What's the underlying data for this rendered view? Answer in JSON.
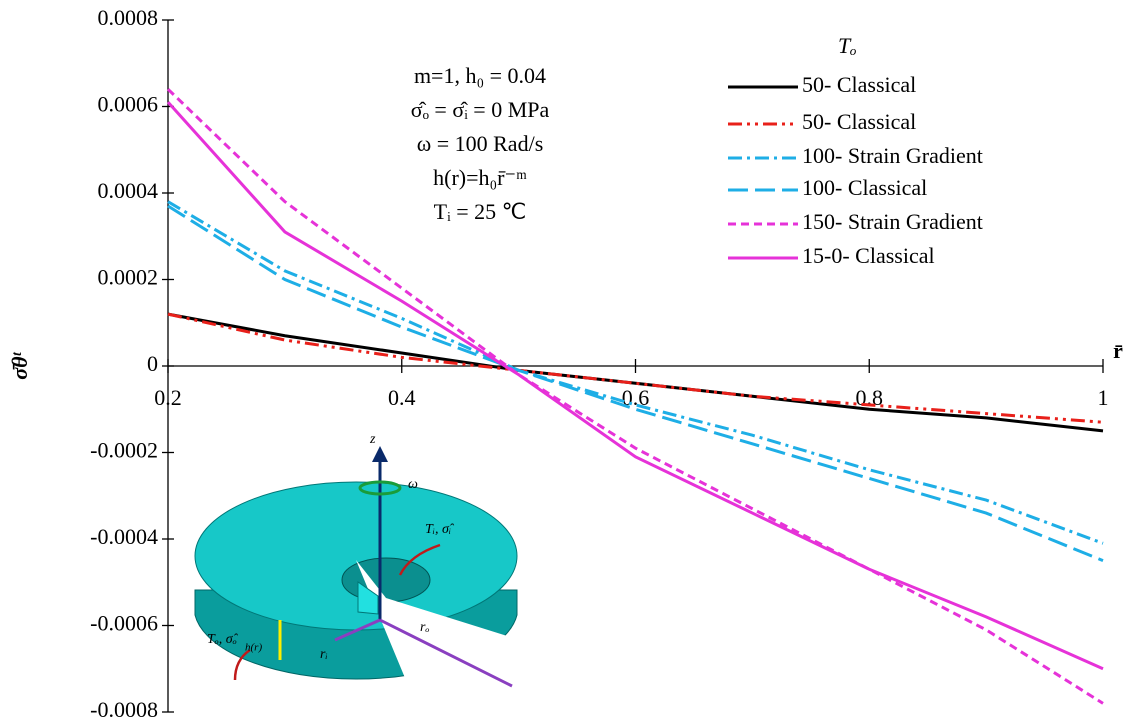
{
  "chart_data": {
    "type": "line",
    "x_label": "r̄",
    "y_label": "σ̄θᵗ",
    "x": [
      0.2,
      0.3,
      0.4,
      0.5,
      0.6,
      0.7,
      0.8,
      0.9,
      1
    ],
    "xlim": [
      0.2,
      1
    ],
    "xticks": [
      0.2,
      0.4,
      0.6,
      0.8,
      1
    ],
    "ylim": [
      -0.0008,
      0.0008
    ],
    "yticks": [
      -0.0008,
      -0.0006,
      -0.0004,
      -0.0002,
      0,
      0.0002,
      0.0004,
      0.0006,
      0.0008
    ],
    "grid": false,
    "legend_title": "Tₒ",
    "legend": "upper right",
    "series": [
      {
        "name": "50- Classical",
        "color": "#000000",
        "style": "solid",
        "values": [
          0.00012,
          7e-05,
          3e-05,
          -1e-05,
          -4e-05,
          -7e-05,
          -0.0001,
          -0.00012,
          -0.00015
        ]
      },
      {
        "name": "50- Classical",
        "color": "#e8201a",
        "style": "dash-dot-dot",
        "values": [
          0.00012,
          6e-05,
          2e-05,
          -1e-05,
          -4e-05,
          -7e-05,
          -9e-05,
          -0.00011,
          -0.00013
        ]
      },
      {
        "name": "100- Strain Gradient",
        "color": "#1eaee6",
        "style": "dash-dot",
        "values": [
          0.00038,
          0.00022,
          0.00011,
          -1e-05,
          -9e-05,
          -0.00016,
          -0.00024,
          -0.00031,
          -0.00041
        ]
      },
      {
        "name": "100- Classical",
        "color": "#1eaee6",
        "style": "long-dash",
        "values": [
          0.00037,
          0.0002,
          9e-05,
          -1e-05,
          -0.0001,
          -0.00018,
          -0.00026,
          -0.00034,
          -0.00045
        ]
      },
      {
        "name": "150- Strain Gradient",
        "color": "#e632d8",
        "style": "dash",
        "values": [
          0.00064,
          0.00038,
          0.00018,
          -2e-05,
          -0.00019,
          -0.00033,
          -0.00047,
          -0.00061,
          -0.00078
        ]
      },
      {
        "name": "15-0- Classical",
        "color": "#e632d8",
        "style": "solid",
        "values": [
          0.00061,
          0.00031,
          0.00015,
          -2e-05,
          -0.00021,
          -0.00034,
          -0.00047,
          -0.00058,
          -0.0007
        ]
      }
    ],
    "annotations": [
      "m=1, h₀ = 0.04",
      "σ̂ₒ = σ̂ᵢ = 0 MPa",
      "ω = 100 Rad/s",
      "h(r)=h₀r̄⁻ᵐ",
      "Tᵢ = 25 ℃"
    ],
    "inset_labels": {
      "axis": "z",
      "spin": "ω",
      "inner": "Tᵢ, σ̂ᵢ",
      "outer": "Tₒ, σ̂ₒ",
      "height": "h(r)",
      "inner_radius": "rᵢ",
      "outer_radius": "rₒ"
    }
  }
}
